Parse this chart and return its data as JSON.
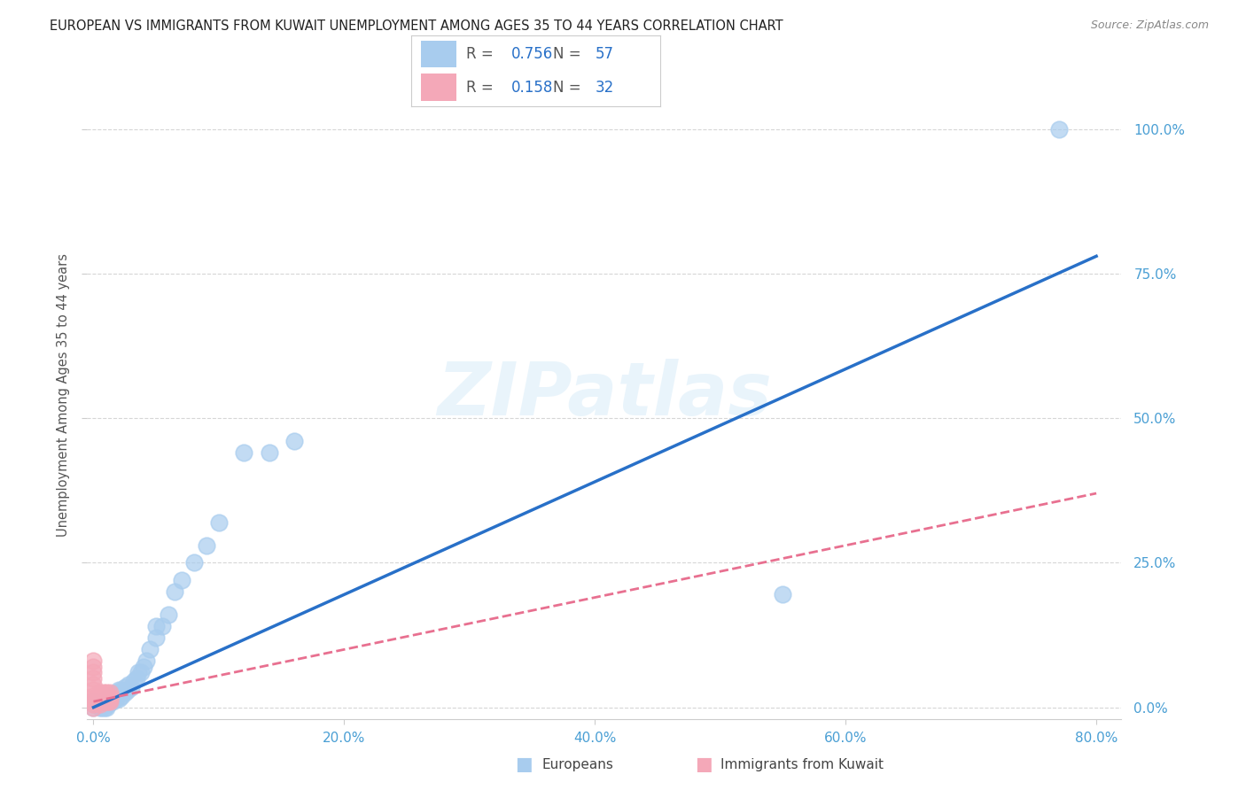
{
  "title": "EUROPEAN VS IMMIGRANTS FROM KUWAIT UNEMPLOYMENT AMONG AGES 35 TO 44 YEARS CORRELATION CHART",
  "source": "Source: ZipAtlas.com",
  "ylabel": "Unemployment Among Ages 35 to 44 years",
  "xlim": [
    -0.005,
    0.82
  ],
  "ylim": [
    -0.02,
    1.1
  ],
  "x_ticks": [
    0.0,
    0.2,
    0.4,
    0.6,
    0.8
  ],
  "x_tick_labels": [
    "0.0%",
    "20.0%",
    "40.0%",
    "60.0%",
    "80.0%"
  ],
  "y_ticks": [
    0.0,
    0.25,
    0.5,
    0.75,
    1.0
  ],
  "y_tick_labels": [
    "0.0%",
    "25.0%",
    "50.0%",
    "75.0%",
    "100.0%"
  ],
  "R_blue": 0.756,
  "N_blue": 57,
  "R_pink": 0.158,
  "N_pink": 32,
  "blue_color": "#a8ccee",
  "pink_color": "#f4a8b8",
  "blue_line_color": "#2870c8",
  "pink_line_color": "#e87090",
  "blue_scatter_x": [
    0.0,
    0.0,
    0.0,
    0.005,
    0.005,
    0.007,
    0.007,
    0.008,
    0.008,
    0.009,
    0.009,
    0.01,
    0.01,
    0.01,
    0.01,
    0.012,
    0.012,
    0.013,
    0.013,
    0.014,
    0.015,
    0.015,
    0.016,
    0.017,
    0.018,
    0.018,
    0.02,
    0.02,
    0.02,
    0.022,
    0.022,
    0.025,
    0.025,
    0.027,
    0.028,
    0.03,
    0.032,
    0.034,
    0.036,
    0.038,
    0.04,
    0.042,
    0.045,
    0.05,
    0.05,
    0.055,
    0.06,
    0.065,
    0.07,
    0.08,
    0.09,
    0.1,
    0.12,
    0.14,
    0.16,
    0.55,
    0.77
  ],
  "blue_scatter_y": [
    0.0,
    0.005,
    0.01,
    0.0,
    0.005,
    0.0,
    0.007,
    0.005,
    0.01,
    0.0,
    0.008,
    0.0,
    0.005,
    0.01,
    0.015,
    0.005,
    0.012,
    0.008,
    0.015,
    0.012,
    0.01,
    0.018,
    0.015,
    0.02,
    0.015,
    0.025,
    0.015,
    0.025,
    0.03,
    0.02,
    0.03,
    0.025,
    0.035,
    0.03,
    0.04,
    0.035,
    0.045,
    0.05,
    0.06,
    0.06,
    0.07,
    0.08,
    0.1,
    0.12,
    0.14,
    0.14,
    0.16,
    0.2,
    0.22,
    0.25,
    0.28,
    0.32,
    0.44,
    0.44,
    0.46,
    0.195,
    1.0
  ],
  "pink_scatter_x": [
    0.0,
    0.0,
    0.0,
    0.0,
    0.0,
    0.0,
    0.0,
    0.0,
    0.0,
    0.0,
    0.0,
    0.005,
    0.005,
    0.005,
    0.005,
    0.005,
    0.007,
    0.007,
    0.008,
    0.008,
    0.008,
    0.008,
    0.01,
    0.01,
    0.01,
    0.01,
    0.012,
    0.012,
    0.013,
    0.013,
    0.013,
    0.013
  ],
  "pink_scatter_y": [
    0.0,
    0.005,
    0.01,
    0.015,
    0.02,
    0.03,
    0.04,
    0.05,
    0.06,
    0.07,
    0.08,
    0.005,
    0.01,
    0.015,
    0.02,
    0.025,
    0.01,
    0.015,
    0.01,
    0.015,
    0.02,
    0.025,
    0.01,
    0.015,
    0.02,
    0.025,
    0.01,
    0.015,
    0.01,
    0.015,
    0.02,
    0.025
  ],
  "blue_line_x": [
    0.0,
    0.8
  ],
  "blue_line_y": [
    0.0,
    0.78
  ],
  "pink_line_x": [
    0.0,
    0.8
  ],
  "pink_line_y": [
    0.01,
    0.37
  ],
  "watermark_text": "ZIPatlas",
  "background_color": "#ffffff",
  "grid_color": "#cccccc",
  "title_color": "#222222",
  "axis_label_color": "#555555",
  "tick_color": "#4a9fd4",
  "source_color": "#888888"
}
